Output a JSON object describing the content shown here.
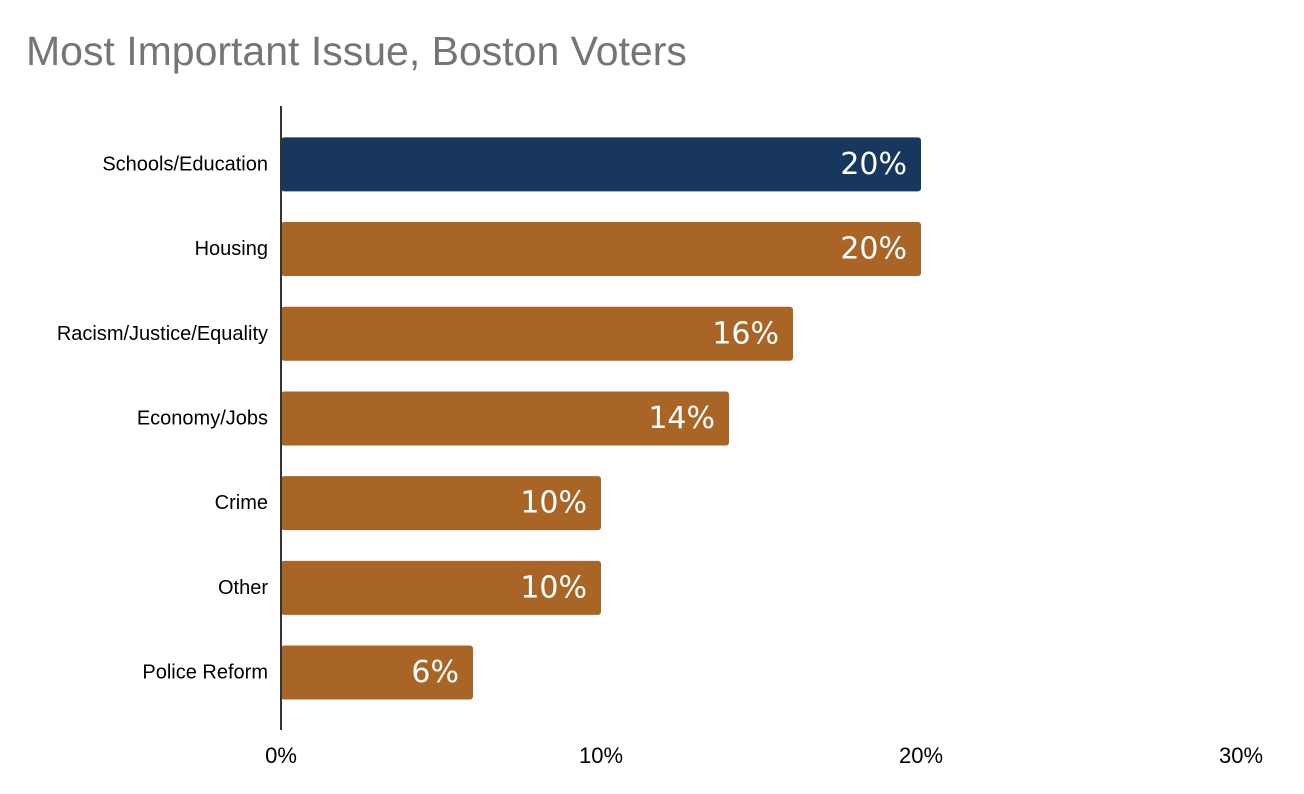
{
  "chart_data": {
    "type": "bar",
    "orientation": "horizontal",
    "title": "Most Important Issue, Boston Voters",
    "categories": [
      "Schools/Education",
      "Housing",
      "Racism/Justice/Equality",
      "Economy/Jobs",
      "Crime",
      "Other",
      "Police Reform"
    ],
    "values": [
      20,
      20,
      16,
      14,
      10,
      10,
      6
    ],
    "data_labels": [
      "20%",
      "20%",
      "16%",
      "14%",
      "10%",
      "10%",
      "6%"
    ],
    "xlim": [
      0,
      30
    ],
    "x_ticks": [
      0,
      10,
      20,
      30
    ],
    "x_tick_labels": [
      "0%",
      "10%",
      "20%",
      "30%"
    ],
    "xlabel": "",
    "ylabel": "",
    "grid": false,
    "legend": "none",
    "colors": {
      "highlight": "#17375e",
      "default": "#a86526",
      "highlight_index": 0,
      "axis": "#333333",
      "title": "#757575"
    }
  }
}
